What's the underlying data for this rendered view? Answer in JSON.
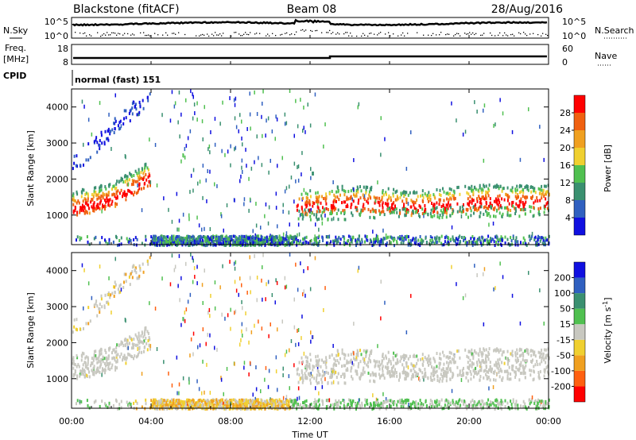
{
  "header": {
    "station": "Blackstone (fitACF)",
    "beam": "Beam 08",
    "date": "28/Aug/2016"
  },
  "top_panels": {
    "nsky_label": "N.Sky",
    "nsearch_label": "N.Search",
    "freq_label": "Freq.",
    "freq_unit": "[MHz]",
    "nave_label": "Nave",
    "cpid_label": "CPID",
    "cpid_value": "normal (fast) 151",
    "noise_left_ticks": [
      "10^5",
      "10^0"
    ],
    "noise_right_ticks": [
      "10^5",
      "10^0"
    ],
    "freq_ticks": [
      "18",
      "8"
    ],
    "nave_ticks": [
      "60",
      "0"
    ]
  },
  "colors": {
    "power_scale": [
      "#1010e0",
      "#3060c0",
      "#3a9070",
      "#50c050",
      "#f0d030",
      "#f0a020",
      "#f06010",
      "#ff0000"
    ],
    "velocity_scale": [
      "#ff0000",
      "#ff6010",
      "#f0a020",
      "#f0d030",
      "#c8c8c0",
      "#50c050",
      "#3a9070",
      "#3060c0",
      "#1010e0"
    ]
  },
  "chart_data": [
    {
      "type": "heatmap",
      "name": "power",
      "ylabel": "Slant Range [km]",
      "yticks": [
        1000,
        2000,
        3000,
        4000
      ],
      "ylim": [
        180,
        4500
      ],
      "xlim_hours": [
        0,
        24
      ],
      "colorbar_label": "Power [dB]",
      "colorbar_ticks": [
        "4",
        "8",
        "12",
        "16",
        "20",
        "24",
        "28"
      ],
      "colorbar_range": [
        0,
        32
      ]
    },
    {
      "type": "heatmap",
      "name": "velocity",
      "ylabel": "Slant Range [km]",
      "yticks": [
        1000,
        2000,
        3000,
        4000
      ],
      "ylim": [
        180,
        4500
      ],
      "xlim_hours": [
        0,
        24
      ],
      "colorbar_label": "Velocity [m s",
      "colorbar_label_sup": "-1",
      "colorbar_label_end": "]",
      "colorbar_ticks": [
        "-200",
        "-100",
        "-50",
        "-15",
        "15",
        "50",
        "100",
        "200"
      ]
    }
  ],
  "x_axis": {
    "label": "Time UT",
    "ticks": [
      "00:00",
      "04:00",
      "08:00",
      "12:00",
      "16:00",
      "20:00",
      "00:00"
    ]
  }
}
